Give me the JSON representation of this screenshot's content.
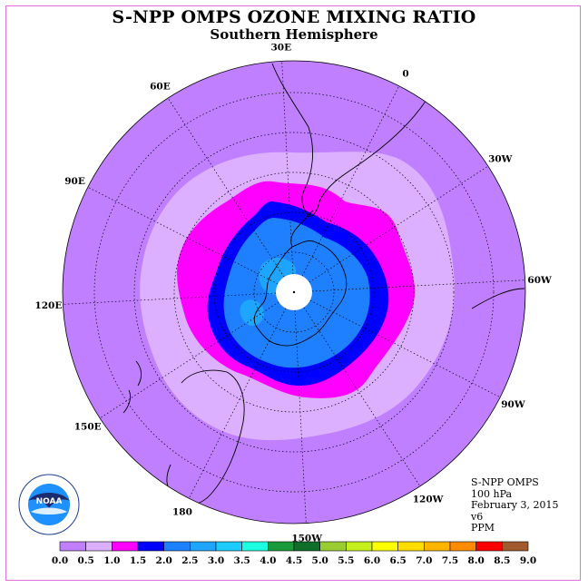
{
  "title": "S-NPP OMPS OZONE MIXING RATIO",
  "subtitle": "Southern Hemisphere",
  "longitude_labels": [
    {
      "text": "90W",
      "angle": -90
    },
    {
      "text": "60W",
      "angle": -60
    },
    {
      "text": "30W",
      "angle": -30
    },
    {
      "text": "0",
      "angle": 0
    },
    {
      "text": "30E",
      "angle": 30
    },
    {
      "text": "60E",
      "angle": 60
    },
    {
      "text": "90E",
      "angle": 90
    },
    {
      "text": "120E",
      "angle": 120
    },
    {
      "text": "150E",
      "angle": 150
    },
    {
      "text": "180",
      "angle": 180
    },
    {
      "text": "150W",
      "angle": -150
    },
    {
      "text": "120W",
      "angle": -120
    }
  ],
  "info": {
    "instrument": "S-NPP OMPS",
    "level": "100 hPa",
    "date": "February 3, 2015",
    "version": "v6",
    "units": "PPM"
  },
  "logo_text": "NOAA",
  "colorbar": {
    "ticks": [
      "0.0",
      "0.5",
      "1.0",
      "1.5",
      "2.0",
      "2.5",
      "3.0",
      "3.5",
      "4.0",
      "4.5",
      "5.0",
      "5.5",
      "6.0",
      "6.5",
      "7.0",
      "7.5",
      "8.0",
      "8.5",
      "9.0"
    ],
    "colors": [
      "#bf7fff",
      "#dcb0ff",
      "#ff00ff",
      "#0000ff",
      "#1e7fff",
      "#1ea5ff",
      "#1ecbff",
      "#1effe0",
      "#1a9a3a",
      "#0f6e2a",
      "#9acd32",
      "#c6ef1e",
      "#ffff00",
      "#ffdd00",
      "#ffb400",
      "#ff8c00",
      "#ff0000",
      "#a05a2d"
    ]
  },
  "colors": {
    "background_ring": "#bf7fff",
    "band_0_5": "#dcb0ff",
    "band_1_0": "#ff00ff",
    "band_1_5": "#0000ff",
    "band_2_0": "#1e7fff",
    "band_2_5": "#1ea5ff",
    "pole_hole": "#ffffff",
    "frame": "#e070e0"
  }
}
